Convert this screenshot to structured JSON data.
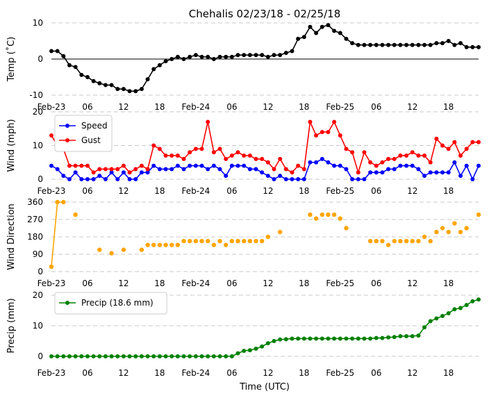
{
  "title": "Chehalis 02/23/18 - 02/25/18",
  "xlabel": "Time (UTC)",
  "x_tick_labels": [
    "Feb-23",
    "06",
    "12",
    "18",
    "Feb-24",
    "06",
    "12",
    "18",
    "Feb-25",
    "06",
    "12",
    "18"
  ],
  "chart_data": [
    {
      "type": "line",
      "ylabel": "Temp (˚C)",
      "ylim": [
        -10,
        10
      ],
      "yticks": [
        -10,
        0,
        10
      ],
      "grid": true,
      "zero_line": true,
      "x_unit": "hours since Feb-23 00 UTC",
      "xlim": [
        0,
        71
      ],
      "series": [
        {
          "color": "#000000",
          "x": [
            0,
            1,
            2,
            3,
            4,
            5,
            6,
            7,
            8,
            9,
            10,
            11,
            12,
            13,
            14,
            15,
            16,
            17,
            18,
            19,
            20,
            21,
            22,
            23,
            24,
            25,
            26,
            27,
            28,
            29,
            30,
            31,
            32,
            33,
            34,
            35,
            36,
            37,
            38,
            39,
            40,
            41,
            42,
            43,
            44,
            45,
            46,
            47,
            48,
            49,
            50,
            51,
            52,
            53,
            54,
            55,
            56,
            57,
            58,
            59,
            60,
            61,
            62,
            63,
            64,
            65,
            66,
            67,
            68,
            69,
            70,
            71
          ],
          "values": [
            2.2,
            2.2,
            0.8,
            -1.7,
            -2.2,
            -4.4,
            -5,
            -6.1,
            -6.7,
            -7.2,
            -7.2,
            -8.3,
            -8.3,
            -8.9,
            -8.9,
            -8.3,
            -5.6,
            -2.8,
            -1.7,
            -0.6,
            0,
            0.6,
            0,
            0.6,
            1.1,
            0.6,
            0.6,
            0,
            0.6,
            0.6,
            0.6,
            1.1,
            1.1,
            1.1,
            1.1,
            1.1,
            0.6,
            1.1,
            1.1,
            1.7,
            2.2,
            5.6,
            6.1,
            8.9,
            7.2,
            8.9,
            9.4,
            7.8,
            7.2,
            5.6,
            4.4,
            3.9,
            3.9,
            3.9,
            3.9,
            3.9,
            3.9,
            3.9,
            3.9,
            3.9,
            3.9,
            3.9,
            3.9,
            3.9,
            4.4,
            4.4,
            5,
            3.9,
            4.4,
            3.3,
            3.3,
            3.3
          ]
        }
      ]
    },
    {
      "type": "line",
      "ylabel": "Wind (mph)",
      "ylim": [
        0,
        20
      ],
      "yticks": [
        0,
        10,
        20
      ],
      "grid": true,
      "xlim": [
        0,
        71
      ],
      "legend_location": "top-left",
      "series": [
        {
          "name": "Speed",
          "color": "#0000ff",
          "x": [
            0,
            1,
            2,
            3,
            4,
            5,
            6,
            7,
            8,
            9,
            10,
            11,
            12,
            13,
            14,
            15,
            16,
            17,
            18,
            19,
            20,
            21,
            22,
            23,
            24,
            25,
            26,
            27,
            28,
            29,
            30,
            31,
            32,
            33,
            34,
            35,
            36,
            37,
            38,
            39,
            40,
            41,
            42,
            43,
            44,
            45,
            46,
            47,
            48,
            49,
            50,
            51,
            52,
            53,
            54,
            55,
            56,
            57,
            58,
            59,
            60,
            61,
            62,
            63,
            64,
            65,
            66,
            67,
            68,
            69,
            70,
            71
          ],
          "values": [
            4,
            3,
            1,
            0,
            2,
            0,
            0,
            0,
            1,
            0,
            2,
            0,
            2,
            0,
            0,
            2,
            2,
            4,
            3,
            3,
            3,
            4,
            3,
            4,
            4,
            4,
            3,
            4,
            3,
            1,
            4,
            4,
            4,
            3,
            3,
            2,
            1,
            0,
            1,
            0,
            0,
            0,
            0,
            5,
            5,
            6,
            5,
            4,
            4,
            3,
            0,
            0,
            0,
            2,
            2,
            2,
            3,
            3,
            4,
            4,
            4,
            3,
            1,
            2,
            2,
            2,
            2,
            5,
            1,
            4,
            0,
            4
          ]
        },
        {
          "name": "Gust",
          "color": "#ff0000",
          "x": [
            0,
            1,
            2,
            3,
            4,
            5,
            6,
            7,
            8,
            9,
            10,
            11,
            12,
            13,
            14,
            15,
            16,
            17,
            18,
            19,
            20,
            21,
            22,
            23,
            24,
            25,
            26,
            27,
            28,
            29,
            30,
            31,
            32,
            33,
            34,
            35,
            36,
            37,
            38,
            39,
            40,
            41,
            42,
            43,
            44,
            45,
            46,
            47,
            48,
            49,
            50,
            51,
            52,
            53,
            54,
            55,
            56,
            57,
            58,
            59,
            60,
            61,
            62,
            63,
            64,
            65,
            66,
            67,
            68,
            69,
            70,
            71
          ],
          "values": [
            13,
            10,
            9,
            4,
            4,
            4,
            4,
            2,
            3,
            3,
            3,
            3,
            4,
            2,
            3,
            4,
            3,
            10,
            9,
            7,
            7,
            7,
            6,
            8,
            9,
            9,
            17,
            8,
            9,
            6,
            7,
            8,
            7,
            7,
            6,
            6,
            5,
            3,
            6,
            3,
            2,
            4,
            3,
            17,
            13,
            14,
            14,
            17,
            13,
            9,
            8,
            2,
            8,
            5,
            4,
            5,
            6,
            6,
            7,
            7,
            8,
            7,
            7,
            5,
            12,
            10,
            9,
            11,
            7,
            9,
            11,
            11
          ]
        }
      ]
    },
    {
      "type": "scatter",
      "ylabel": "Wind Direction",
      "ylim": [
        0,
        360
      ],
      "yticks": [
        0,
        90,
        180,
        270,
        360
      ],
      "grid": true,
      "xlim": [
        0,
        71
      ],
      "series": [
        {
          "color": "#ffa500",
          "connected_segment_x": [
            0,
            1,
            2
          ],
          "x": [
            0,
            1,
            2,
            4,
            8,
            10,
            12,
            15,
            16,
            17,
            18,
            19,
            20,
            21,
            22,
            23,
            24,
            25,
            26,
            27,
            28,
            29,
            30,
            31,
            32,
            33,
            34,
            35,
            36,
            38,
            43,
            44,
            45,
            46,
            47,
            48,
            49,
            53,
            54,
            55,
            56,
            57,
            58,
            59,
            60,
            61,
            62,
            63,
            64,
            65,
            66,
            67,
            68,
            69,
            71
          ],
          "values": [
            25,
            360,
            360,
            295,
            113,
            95,
            113,
            113,
            138,
            138,
            138,
            138,
            138,
            138,
            158,
            158,
            158,
            158,
            158,
            138,
            158,
            138,
            158,
            158,
            158,
            158,
            158,
            158,
            180,
            205,
            295,
            275,
            295,
            295,
            295,
            275,
            225,
            158,
            158,
            158,
            138,
            158,
            158,
            158,
            158,
            158,
            180,
            158,
            205,
            225,
            205,
            250,
            205,
            225,
            295
          ]
        }
      ]
    },
    {
      "type": "line",
      "ylabel": "Precip (mm)",
      "ylim": [
        0,
        20
      ],
      "yticks": [
        0,
        10,
        20
      ],
      "grid": true,
      "xlim": [
        0,
        71
      ],
      "legend_location": "top-left",
      "series": [
        {
          "name": "Precip (18.6 mm)",
          "color": "#008000",
          "x": [
            0,
            1,
            2,
            3,
            4,
            5,
            6,
            7,
            8,
            9,
            10,
            11,
            12,
            13,
            14,
            15,
            16,
            17,
            18,
            19,
            20,
            21,
            22,
            23,
            24,
            25,
            26,
            27,
            28,
            29,
            30,
            31,
            32,
            33,
            34,
            35,
            36,
            37,
            38,
            39,
            40,
            41,
            42,
            43,
            44,
            45,
            46,
            47,
            48,
            49,
            50,
            51,
            52,
            53,
            54,
            55,
            56,
            57,
            58,
            59,
            60,
            61,
            62,
            63,
            64,
            65,
            66,
            67,
            68,
            69,
            70,
            71
          ],
          "values": [
            0,
            0,
            0,
            0,
            0,
            0,
            0,
            0,
            0,
            0,
            0,
            0,
            0,
            0,
            0,
            0,
            0,
            0,
            0,
            0,
            0,
            0,
            0,
            0,
            0,
            0,
            0,
            0,
            0,
            0,
            0,
            1,
            1.8,
            2,
            2.5,
            3.2,
            4.3,
            5,
            5.5,
            5.6,
            5.8,
            5.8,
            5.8,
            5.8,
            5.8,
            5.8,
            5.8,
            5.8,
            5.8,
            5.8,
            5.8,
            5.8,
            5.8,
            5.8,
            6,
            6,
            6.2,
            6.3,
            6.6,
            6.6,
            6.6,
            6.8,
            9.5,
            11.5,
            12.4,
            13.2,
            14.1,
            15.4,
            15.8,
            16.8,
            18,
            18.6
          ]
        }
      ]
    }
  ]
}
